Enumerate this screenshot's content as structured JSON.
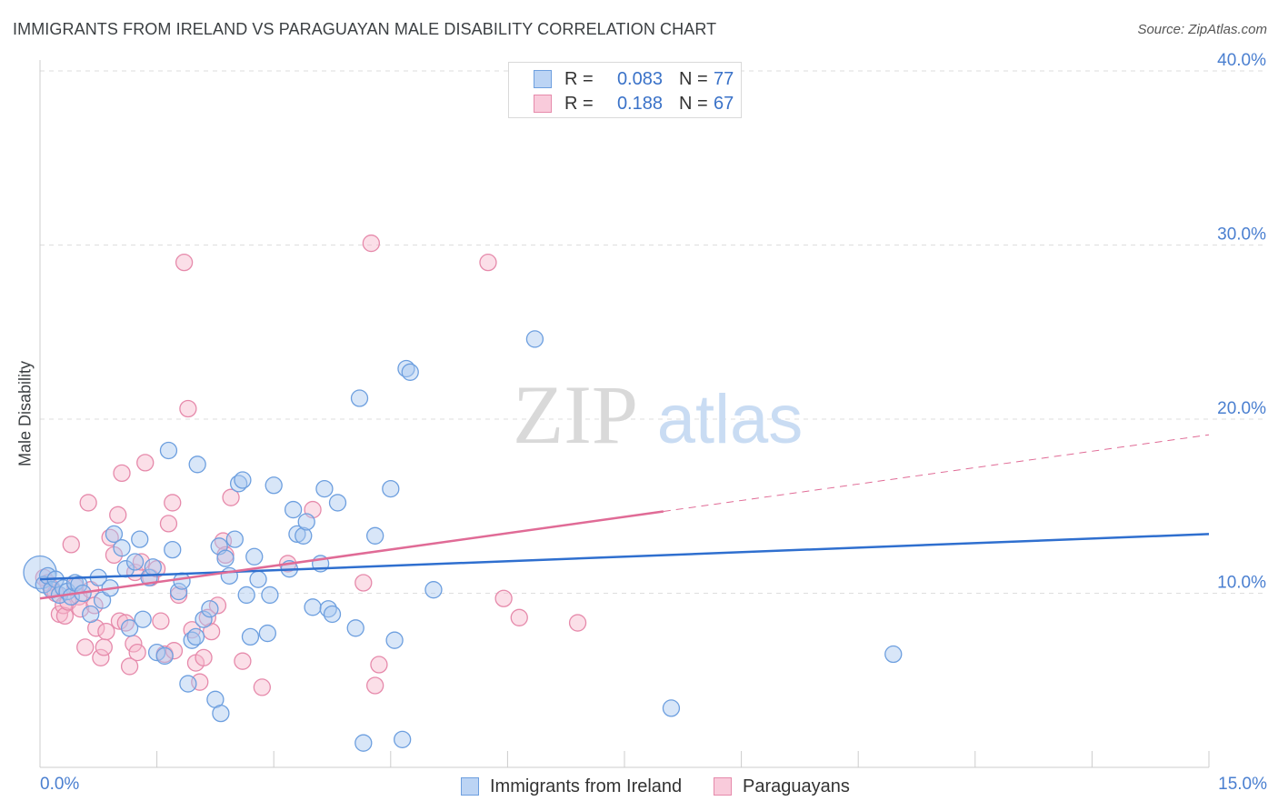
{
  "title": "IMMIGRANTS FROM IRELAND VS PARAGUAYAN MALE DISABILITY CORRELATION CHART",
  "source": "Source: ZipAtlas.com",
  "watermark": {
    "zip": "ZIP",
    "atlas": "atlas"
  },
  "legend_top": [
    {
      "r_label": "R =",
      "r_value": "0.083",
      "n_label": "N =",
      "n_value": "77"
    },
    {
      "r_label": "R =",
      "r_value": "0.188",
      "n_label": "N =",
      "n_value": "67"
    }
  ],
  "colors": {
    "blue_fill": "#a9c8f0",
    "blue_stroke": "#6d9fdf",
    "blue_line": "#2f6fcf",
    "pink_fill": "#f6b8cd",
    "pink_stroke": "#e68aab",
    "pink_line": "#e06b96",
    "tick": "#4a7fd0",
    "grid": "#dedede"
  },
  "chart_data": {
    "type": "scatter",
    "title": "IMMIGRANTS FROM IRELAND VS PARAGUAYAN MALE DISABILITY CORRELATION CHART",
    "xlabel": "",
    "ylabel": "Male Disability",
    "xlim": [
      0,
      15
    ],
    "ylim": [
      0,
      40
    ],
    "x_tick_labels": [
      "0.0%",
      "15.0%"
    ],
    "y_ticks": [
      10,
      20,
      30,
      40
    ],
    "y_tick_labels": [
      "10.0%",
      "20.0%",
      "30.0%",
      "40.0%"
    ],
    "legend_position": "bottom",
    "series": [
      {
        "name": "Immigrants from Ireland",
        "R": 0.083,
        "N": 77,
        "trend": {
          "x": [
            0,
            15
          ],
          "y": [
            10.8,
            13.4
          ]
        },
        "points": [
          {
            "x": 0.0,
            "y": 11.2,
            "big": true
          },
          {
            "x": 0.05,
            "y": 10.5
          },
          {
            "x": 0.1,
            "y": 11.0
          },
          {
            "x": 0.15,
            "y": 10.2
          },
          {
            "x": 0.2,
            "y": 10.8
          },
          {
            "x": 0.25,
            "y": 9.9
          },
          {
            "x": 0.3,
            "y": 10.3
          },
          {
            "x": 0.35,
            "y": 10.1
          },
          {
            "x": 0.4,
            "y": 9.8
          },
          {
            "x": 0.45,
            "y": 10.6
          },
          {
            "x": 0.5,
            "y": 10.5
          },
          {
            "x": 0.55,
            "y": 10.0
          },
          {
            "x": 0.65,
            "y": 8.8
          },
          {
            "x": 0.75,
            "y": 10.9
          },
          {
            "x": 0.8,
            "y": 9.6
          },
          {
            "x": 0.9,
            "y": 10.3
          },
          {
            "x": 0.95,
            "y": 13.4
          },
          {
            "x": 1.05,
            "y": 12.6
          },
          {
            "x": 1.1,
            "y": 11.4
          },
          {
            "x": 1.15,
            "y": 8.0
          },
          {
            "x": 1.22,
            "y": 11.8
          },
          {
            "x": 1.28,
            "y": 13.1
          },
          {
            "x": 1.32,
            "y": 8.5
          },
          {
            "x": 1.4,
            "y": 10.9
          },
          {
            "x": 1.45,
            "y": 11.5
          },
          {
            "x": 1.5,
            "y": 6.6
          },
          {
            "x": 1.6,
            "y": 6.4
          },
          {
            "x": 1.65,
            "y": 18.2
          },
          {
            "x": 1.7,
            "y": 12.5
          },
          {
            "x": 1.78,
            "y": 10.1
          },
          {
            "x": 1.82,
            "y": 10.7
          },
          {
            "x": 1.9,
            "y": 4.8
          },
          {
            "x": 1.95,
            "y": 7.3
          },
          {
            "x": 2.0,
            "y": 7.5
          },
          {
            "x": 2.02,
            "y": 17.4
          },
          {
            "x": 2.1,
            "y": 8.5
          },
          {
            "x": 2.18,
            "y": 9.1
          },
          {
            "x": 2.25,
            "y": 3.9
          },
          {
            "x": 2.3,
            "y": 12.7
          },
          {
            "x": 2.32,
            "y": 3.1
          },
          {
            "x": 2.38,
            "y": 12.0
          },
          {
            "x": 2.43,
            "y": 11.0
          },
          {
            "x": 2.5,
            "y": 13.1
          },
          {
            "x": 2.55,
            "y": 16.3
          },
          {
            "x": 2.6,
            "y": 16.5
          },
          {
            "x": 2.65,
            "y": 9.9
          },
          {
            "x": 2.7,
            "y": 7.5
          },
          {
            "x": 2.75,
            "y": 12.1
          },
          {
            "x": 2.8,
            "y": 10.8
          },
          {
            "x": 2.92,
            "y": 7.7
          },
          {
            "x": 2.95,
            "y": 9.9
          },
          {
            "x": 3.0,
            "y": 16.2
          },
          {
            "x": 3.2,
            "y": 11.4
          },
          {
            "x": 3.25,
            "y": 14.8
          },
          {
            "x": 3.3,
            "y": 13.4
          },
          {
            "x": 3.38,
            "y": 13.3
          },
          {
            "x": 3.42,
            "y": 14.1
          },
          {
            "x": 3.5,
            "y": 9.2
          },
          {
            "x": 3.6,
            "y": 11.7
          },
          {
            "x": 3.65,
            "y": 16.0
          },
          {
            "x": 3.7,
            "y": 9.1
          },
          {
            "x": 3.75,
            "y": 8.8
          },
          {
            "x": 3.82,
            "y": 15.2
          },
          {
            "x": 4.05,
            "y": 8.0
          },
          {
            "x": 4.1,
            "y": 21.2
          },
          {
            "x": 4.15,
            "y": 1.4
          },
          {
            "x": 4.3,
            "y": 13.3
          },
          {
            "x": 4.5,
            "y": 16.0
          },
          {
            "x": 4.55,
            "y": 7.3
          },
          {
            "x": 4.65,
            "y": 1.6
          },
          {
            "x": 4.7,
            "y": 22.9
          },
          {
            "x": 4.75,
            "y": 22.7
          },
          {
            "x": 5.05,
            "y": 10.2
          },
          {
            "x": 6.35,
            "y": 24.6
          },
          {
            "x": 8.1,
            "y": 3.4
          },
          {
            "x": 10.95,
            "y": 6.5
          }
        ]
      },
      {
        "name": "Paraguayans",
        "R": 0.188,
        "N": 67,
        "trend": {
          "x": [
            0,
            8.0
          ],
          "y": [
            9.7,
            14.7
          ]
        },
        "trend_dashed": {
          "x": [
            8.0,
            15
          ],
          "y": [
            14.7,
            19.1
          ]
        },
        "points": [
          {
            "x": 0.05,
            "y": 10.9
          },
          {
            "x": 0.1,
            "y": 10.6
          },
          {
            "x": 0.15,
            "y": 10.3
          },
          {
            "x": 0.2,
            "y": 10.0
          },
          {
            "x": 0.25,
            "y": 8.8
          },
          {
            "x": 0.3,
            "y": 9.3
          },
          {
            "x": 0.32,
            "y": 8.7
          },
          {
            "x": 0.36,
            "y": 9.5
          },
          {
            "x": 0.4,
            "y": 12.8
          },
          {
            "x": 0.45,
            "y": 10.4
          },
          {
            "x": 0.5,
            "y": 9.8
          },
          {
            "x": 0.52,
            "y": 9.1
          },
          {
            "x": 0.58,
            "y": 6.9
          },
          {
            "x": 0.62,
            "y": 15.2
          },
          {
            "x": 0.65,
            "y": 10.2
          },
          {
            "x": 0.7,
            "y": 9.3
          },
          {
            "x": 0.72,
            "y": 8.0
          },
          {
            "x": 0.78,
            "y": 6.3
          },
          {
            "x": 0.82,
            "y": 6.9
          },
          {
            "x": 0.85,
            "y": 7.8
          },
          {
            "x": 0.9,
            "y": 13.2
          },
          {
            "x": 0.95,
            "y": 12.2
          },
          {
            "x": 1.0,
            "y": 14.5
          },
          {
            "x": 1.02,
            "y": 8.4
          },
          {
            "x": 1.05,
            "y": 16.9
          },
          {
            "x": 1.1,
            "y": 8.3
          },
          {
            "x": 1.15,
            "y": 5.8
          },
          {
            "x": 1.2,
            "y": 7.1
          },
          {
            "x": 1.22,
            "y": 11.2
          },
          {
            "x": 1.25,
            "y": 6.6
          },
          {
            "x": 1.3,
            "y": 11.8
          },
          {
            "x": 1.35,
            "y": 17.5
          },
          {
            "x": 1.42,
            "y": 10.9
          },
          {
            "x": 1.5,
            "y": 11.4
          },
          {
            "x": 1.55,
            "y": 8.4
          },
          {
            "x": 1.6,
            "y": 6.5
          },
          {
            "x": 1.65,
            "y": 14.0
          },
          {
            "x": 1.7,
            "y": 15.2
          },
          {
            "x": 1.72,
            "y": 6.7
          },
          {
            "x": 1.78,
            "y": 9.9
          },
          {
            "x": 1.85,
            "y": 29.0
          },
          {
            "x": 1.9,
            "y": 20.6
          },
          {
            "x": 1.95,
            "y": 7.9
          },
          {
            "x": 2.0,
            "y": 6.0
          },
          {
            "x": 2.05,
            "y": 4.9
          },
          {
            "x": 2.1,
            "y": 6.3
          },
          {
            "x": 2.15,
            "y": 8.6
          },
          {
            "x": 2.2,
            "y": 7.8
          },
          {
            "x": 2.28,
            "y": 9.3
          },
          {
            "x": 2.35,
            "y": 13.0
          },
          {
            "x": 2.38,
            "y": 12.2
          },
          {
            "x": 2.45,
            "y": 15.5
          },
          {
            "x": 2.6,
            "y": 6.1
          },
          {
            "x": 2.85,
            "y": 4.6
          },
          {
            "x": 3.18,
            "y": 11.7
          },
          {
            "x": 3.5,
            "y": 14.8
          },
          {
            "x": 4.15,
            "y": 10.6
          },
          {
            "x": 4.25,
            "y": 30.1
          },
          {
            "x": 4.3,
            "y": 4.7
          },
          {
            "x": 4.35,
            "y": 5.9
          },
          {
            "x": 5.75,
            "y": 29.0
          },
          {
            "x": 5.95,
            "y": 9.7
          },
          {
            "x": 6.15,
            "y": 8.6
          },
          {
            "x": 6.9,
            "y": 8.3
          }
        ]
      }
    ]
  },
  "legend_bottom": [
    "Immigrants from Ireland",
    "Paraguayans"
  ]
}
